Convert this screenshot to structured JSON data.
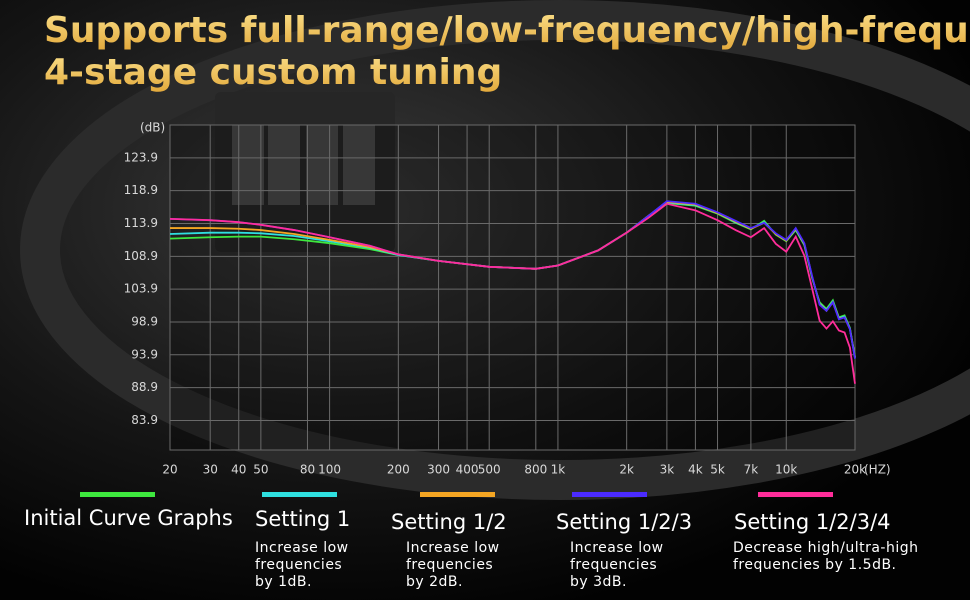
{
  "chart_data": {
    "type": "line",
    "title": "Supports full-range/low-frequency/high-frequency",
    "subtitle": "4-stage custom tuning",
    "y_label": "(dB)",
    "x_label": "(HZ)",
    "log_x": true,
    "grid": true,
    "xlim": [
      20,
      20000
    ],
    "ylim": [
      79.4,
      128.9
    ],
    "yticks": [
      83.9,
      88.9,
      93.9,
      98.9,
      103.9,
      108.9,
      113.9,
      118.9,
      123.9
    ],
    "xticks": [
      20,
      30,
      40,
      50,
      80,
      100,
      200,
      300,
      400,
      500,
      800,
      {
        "value": 1000,
        "label": "1k"
      },
      {
        "value": 2000,
        "label": "2k"
      },
      {
        "value": 3000,
        "label": "3k"
      },
      {
        "value": 4000,
        "label": "4k"
      },
      {
        "value": 5000,
        "label": "5k"
      },
      {
        "value": 7000,
        "label": "7k"
      },
      {
        "value": 10000,
        "label": "10k"
      },
      {
        "value": 20000,
        "label": "20k"
      }
    ],
    "x": [
      20,
      30,
      40,
      50,
      70,
      100,
      150,
      200,
      300,
      500,
      800,
      1000,
      1500,
      2000,
      2500,
      3000,
      4000,
      5000,
      6000,
      7000,
      8000,
      9000,
      10000,
      11000,
      12000,
      13000,
      14000,
      15000,
      16000,
      17000,
      18000,
      19000,
      20000
    ],
    "series": [
      {
        "name": "Initial Curve Graphs",
        "color": "#3ee83e",
        "values": [
          111.6,
          111.8,
          111.9,
          111.9,
          111.5,
          110.9,
          110.0,
          109.1,
          108.2,
          107.3,
          107.0,
          107.5,
          109.8,
          112.5,
          115.1,
          117.0,
          116.6,
          115.4,
          114.0,
          113.0,
          114.3,
          112.2,
          111.2,
          112.9,
          110.6,
          105.5,
          101.9,
          100.9,
          102.2,
          99.6,
          99.9,
          98.0,
          93.6
        ]
      },
      {
        "name": "Setting 1",
        "color": "#2fe0e0",
        "description": "Increase low\nfrequencies\nby 1dB.",
        "values": [
          112.3,
          112.5,
          112.5,
          112.4,
          112.0,
          111.2,
          110.2,
          109.1,
          108.2,
          107.3,
          107.0,
          107.5,
          109.8,
          112.5,
          115.1,
          117.1,
          116.7,
          115.5,
          114.1,
          113.1,
          114.1,
          112.3,
          111.3,
          113.0,
          110.7,
          105.6,
          101.7,
          100.7,
          102.0,
          99.5,
          99.7,
          97.9,
          93.5
        ]
      },
      {
        "name": "Setting 1/2",
        "color": "#f5a623",
        "description": "Increase low\nfrequencies\nby 2dB.",
        "values": [
          113.2,
          113.2,
          113.1,
          112.9,
          112.3,
          111.4,
          110.3,
          109.2,
          108.2,
          107.3,
          107.0,
          107.5,
          109.8,
          112.5,
          115.1,
          117.2,
          116.8,
          115.5,
          114.2,
          113.1,
          114.0,
          112.3,
          111.3,
          113.1,
          110.8,
          105.7,
          101.6,
          100.6,
          101.9,
          99.4,
          99.6,
          97.8,
          93.4
        ]
      },
      {
        "name": "Setting 1/2/3",
        "color": "#4b2bff",
        "description": "Increase low\nfrequencies\nby 3dB.",
        "values": [
          114.6,
          114.4,
          114.1,
          113.7,
          112.9,
          111.8,
          110.5,
          109.2,
          108.2,
          107.3,
          107.0,
          107.5,
          109.8,
          112.5,
          115.1,
          117.3,
          116.9,
          115.6,
          114.3,
          113.2,
          114.0,
          112.4,
          111.4,
          113.2,
          110.9,
          105.8,
          101.5,
          100.6,
          101.9,
          99.3,
          99.6,
          97.8,
          93.3
        ]
      },
      {
        "name": "Setting 1/2/3/4",
        "color": "#ff2d9a",
        "description": "Decrease high/ultra-high\nfrequencies by 1.5dB.",
        "values": [
          114.6,
          114.4,
          114.1,
          113.7,
          112.9,
          111.8,
          110.5,
          109.2,
          108.2,
          107.3,
          107.0,
          107.5,
          109.8,
          112.5,
          114.8,
          116.9,
          115.9,
          114.4,
          112.9,
          111.8,
          113.2,
          110.8,
          109.6,
          111.9,
          109.0,
          103.9,
          99.1,
          97.9,
          99.0,
          97.6,
          97.3,
          95.0,
          89.5
        ]
      }
    ]
  }
}
